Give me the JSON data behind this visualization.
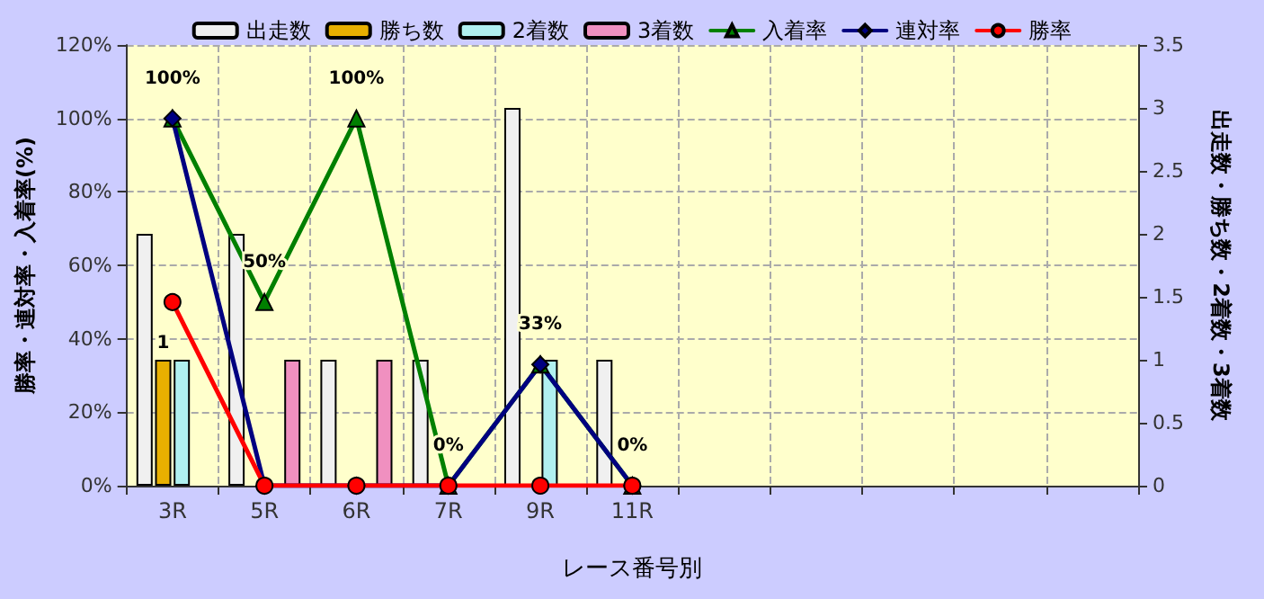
{
  "chart_data": {
    "type": "bar",
    "xlabel": "レース番号別",
    "ylabel": "勝率・連対率・入着率(%)",
    "y2label": "出走数・勝ち数・2着数・3着数",
    "categories": [
      "3R",
      "5R",
      "6R",
      "7R",
      "9R",
      "11R",
      null,
      null,
      null,
      null,
      null
    ],
    "series": [
      {
        "name": "出走数",
        "axis": "y2",
        "color": "#f0f0f0",
        "values": [
          2,
          2,
          1,
          1,
          3,
          1,
          null,
          null,
          null,
          null,
          null
        ]
      },
      {
        "name": "勝ち数",
        "axis": "y2",
        "color": "#e8b000",
        "values": [
          1,
          0,
          0,
          0,
          0,
          0,
          null,
          null,
          null,
          null,
          null
        ],
        "value_labels": [
          "1",
          null,
          null,
          null,
          null,
          null,
          null,
          null,
          null,
          null,
          null
        ]
      },
      {
        "name": "2着数",
        "axis": "y2",
        "color": "#b0f0f0",
        "values": [
          1,
          0,
          0,
          0,
          1,
          0,
          null,
          null,
          null,
          null,
          null
        ]
      },
      {
        "name": "3着数",
        "axis": "y2",
        "color": "#f090c0",
        "values": [
          0,
          1,
          1,
          0,
          0,
          0,
          null,
          null,
          null,
          null,
          null
        ]
      },
      {
        "name": "入着率",
        "type": "line",
        "axis": "y",
        "color": "#008000",
        "marker": "triangle",
        "values": [
          100,
          50,
          100,
          0,
          33,
          0,
          null,
          null,
          null,
          null,
          null
        ],
        "value_labels": [
          "100%",
          "50%",
          "100%",
          "0%",
          "33%",
          "0%",
          null,
          null,
          null,
          null,
          null
        ]
      },
      {
        "name": "連対率",
        "type": "line",
        "axis": "y",
        "color": "#000080",
        "marker": "diamond",
        "values": [
          100,
          0,
          0,
          0,
          33,
          0,
          null,
          null,
          null,
          null,
          null
        ]
      },
      {
        "name": "勝率",
        "type": "line",
        "axis": "y",
        "color": "#ff0000",
        "marker": "circle",
        "values": [
          50,
          0,
          0,
          0,
          0,
          0,
          null,
          null,
          null,
          null,
          null
        ]
      }
    ],
    "ylim": [
      0,
      120
    ],
    "yticks": [
      {
        "value": 0,
        "label": "0%"
      },
      {
        "value": 20,
        "label": "20%"
      },
      {
        "value": 40,
        "label": "40%"
      },
      {
        "value": 60,
        "label": "60%"
      },
      {
        "value": 80,
        "label": "80%"
      },
      {
        "value": 100,
        "label": "100%"
      },
      {
        "value": 120,
        "label": "120%"
      }
    ],
    "y2lim": [
      0,
      3.5
    ],
    "y2ticks": [
      0,
      0.5,
      1,
      1.5,
      2,
      2.5,
      3,
      3.5
    ],
    "grid": true,
    "legend": "top"
  }
}
